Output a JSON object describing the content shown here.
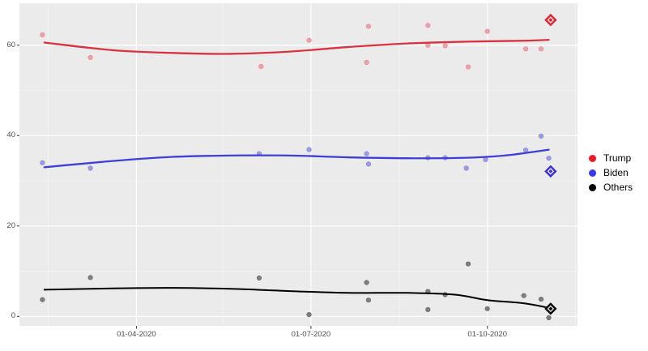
{
  "figure": {
    "background": "#ffffff",
    "panel_background": "#ebebeb",
    "grid_major_color": "#ffffff",
    "grid_minor_color": "rgba(255,255,255,0.55)",
    "tick_color": "#333333",
    "axis_text_color": "#4d4d4d"
  },
  "chart_data": {
    "type": "scatter",
    "title": "",
    "xlabel": "",
    "ylabel": "",
    "grid": true,
    "legend_position": "right",
    "x_domain": [
      "2020-01-31",
      "2020-11-17"
    ],
    "ylim": [
      -2.1,
      69.3
    ],
    "x_ticks": [
      {
        "date": "2020-04-01",
        "label": "01-04-2020"
      },
      {
        "date": "2020-07-01",
        "label": "01-07-2020"
      },
      {
        "date": "2020-10-01",
        "label": "01-10-2020"
      }
    ],
    "x_minor_ticks": [
      "2020-02-15",
      "2020-05-16",
      "2020-08-16",
      "2020-11-16"
    ],
    "y_ticks": [
      {
        "value": 0,
        "label": "0"
      },
      {
        "value": 20,
        "label": "20"
      },
      {
        "value": 40,
        "label": "40"
      },
      {
        "value": 60,
        "label": "60"
      }
    ],
    "y_minor_ticks": [
      10,
      30,
      50
    ],
    "series": [
      {
        "name": "Trump",
        "colors": {
          "point": "#f0a3ab",
          "point_stroke": "#e18e98",
          "line": "#d63440",
          "final": "#dd2130",
          "legend": "#ed1c24"
        },
        "line_width": 2.3,
        "points": [
          [
            "2020-02-12",
            62.3
          ],
          [
            "2020-03-08",
            57.3
          ],
          [
            "2020-06-05",
            55.3
          ],
          [
            "2020-06-30",
            61.1
          ],
          [
            "2020-07-30",
            56.2
          ],
          [
            "2020-07-31",
            64.2
          ],
          [
            "2020-08-31",
            64.4
          ],
          [
            "2020-08-31",
            60.0
          ],
          [
            "2020-09-09",
            59.9
          ],
          [
            "2020-09-21",
            55.2
          ],
          [
            "2020-10-01",
            63.1
          ],
          [
            "2020-10-21",
            59.2
          ],
          [
            "2020-10-29",
            59.2
          ]
        ],
        "trend": [
          [
            "2020-02-13",
            60.6
          ],
          [
            "2020-03-20",
            58.9
          ],
          [
            "2020-04-20",
            58.3
          ],
          [
            "2020-05-20",
            58.1
          ],
          [
            "2020-06-20",
            58.6
          ],
          [
            "2020-07-20",
            59.6
          ],
          [
            "2020-08-20",
            60.4
          ],
          [
            "2020-09-20",
            60.8
          ],
          [
            "2020-10-20",
            61.0
          ],
          [
            "2020-11-02",
            61.2
          ]
        ],
        "final": [
          "2020-11-03",
          65.6
        ]
      },
      {
        "name": "Biden",
        "colors": {
          "point": "#9e9ee2",
          "point_stroke": "#8787d6",
          "line": "#3f3fd4",
          "final": "#3b2fd1",
          "legend": "#3a3af2"
        },
        "line_width": 2.3,
        "points": [
          [
            "2020-02-12",
            34.0
          ],
          [
            "2020-03-08",
            32.8
          ],
          [
            "2020-06-04",
            36.0
          ],
          [
            "2020-06-30",
            36.9
          ],
          [
            "2020-07-30",
            36.0
          ],
          [
            "2020-07-31",
            33.7
          ],
          [
            "2020-08-31",
            35.1
          ],
          [
            "2020-09-09",
            35.1
          ],
          [
            "2020-09-20",
            32.8
          ],
          [
            "2020-09-30",
            34.7
          ],
          [
            "2020-10-21",
            36.8
          ],
          [
            "2020-10-29",
            39.9
          ],
          [
            "2020-11-02",
            35.0
          ]
        ],
        "trend": [
          [
            "2020-02-13",
            33.0
          ],
          [
            "2020-03-20",
            34.4
          ],
          [
            "2020-04-20",
            35.3
          ],
          [
            "2020-05-20",
            35.6
          ],
          [
            "2020-06-20",
            35.6
          ],
          [
            "2020-07-20",
            35.2
          ],
          [
            "2020-08-20",
            35.0
          ],
          [
            "2020-09-20",
            35.1
          ],
          [
            "2020-10-10",
            35.6
          ],
          [
            "2020-10-25",
            36.4
          ],
          [
            "2020-11-02",
            36.9
          ]
        ],
        "final": [
          "2020-11-03",
          32.1
        ]
      },
      {
        "name": "Others",
        "colors": {
          "point": "#7f7f7f",
          "point_stroke": "#6b6b6b",
          "line": "#000000",
          "final": "#0a0a0a",
          "legend": "#000000"
        },
        "line_width": 2.0,
        "points": [
          [
            "2020-02-12",
            3.7
          ],
          [
            "2020-03-08",
            8.6
          ],
          [
            "2020-06-04",
            8.5
          ],
          [
            "2020-06-30",
            0.4
          ],
          [
            "2020-07-30",
            7.5
          ],
          [
            "2020-07-31",
            3.6
          ],
          [
            "2020-08-31",
            5.5
          ],
          [
            "2020-08-31",
            1.5
          ],
          [
            "2020-09-09",
            4.8
          ],
          [
            "2020-09-21",
            11.6
          ],
          [
            "2020-10-01",
            1.7
          ],
          [
            "2020-10-20",
            4.6
          ],
          [
            "2020-10-29",
            3.8
          ],
          [
            "2020-11-02",
            -0.3
          ]
        ],
        "trend": [
          [
            "2020-02-13",
            5.9
          ],
          [
            "2020-03-20",
            6.2
          ],
          [
            "2020-04-20",
            6.3
          ],
          [
            "2020-05-20",
            6.1
          ],
          [
            "2020-06-20",
            5.6
          ],
          [
            "2020-07-20",
            5.2
          ],
          [
            "2020-08-20",
            5.2
          ],
          [
            "2020-09-14",
            4.8
          ],
          [
            "2020-10-01",
            3.6
          ],
          [
            "2020-10-20",
            2.9
          ],
          [
            "2020-11-02",
            1.9
          ]
        ],
        "final": [
          "2020-11-03",
          1.7
        ]
      }
    ]
  }
}
